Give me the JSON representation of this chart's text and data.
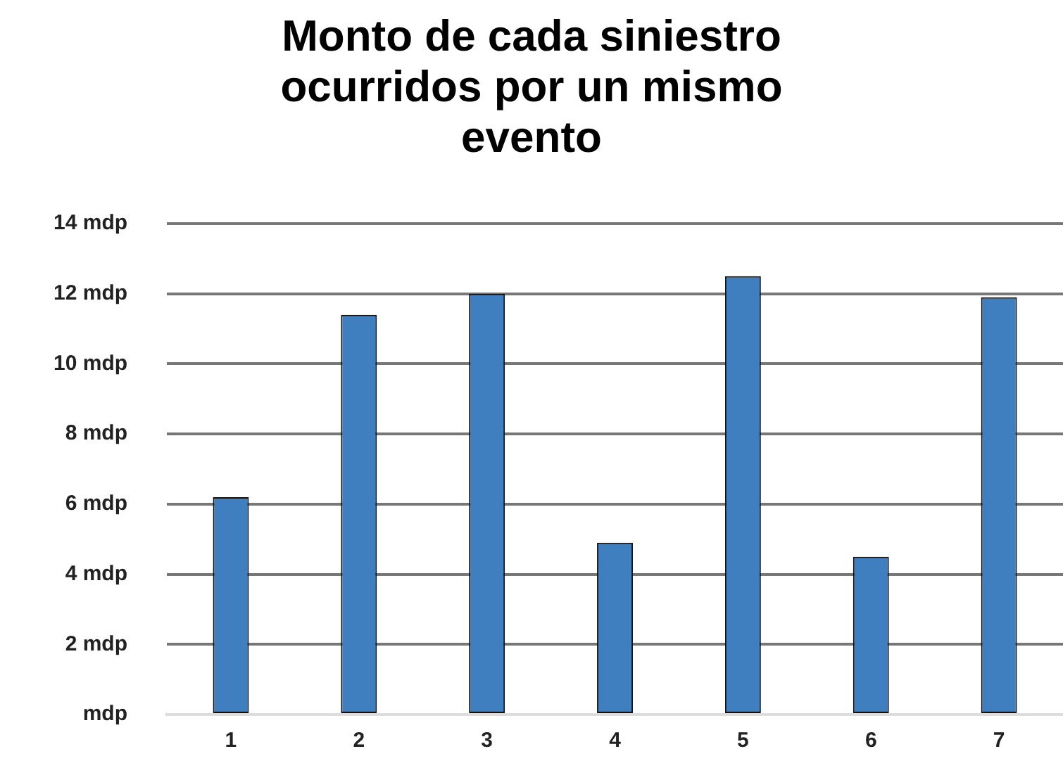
{
  "chart_data": {
    "type": "bar",
    "title": "Monto de cada siniestro ocurridos por un mismo evento",
    "categories": [
      "1",
      "2",
      "3",
      "4",
      "5",
      "6",
      "7"
    ],
    "values": [
      6.2,
      11.4,
      12.0,
      4.9,
      12.5,
      4.5,
      11.9
    ],
    "color": "#3f7fc0",
    "ylim": [
      0,
      14
    ],
    "yticks": [
      {
        "value": 0,
        "label": "mdp"
      },
      {
        "value": 2,
        "label": "2 mdp"
      },
      {
        "value": 4,
        "label": "4 mdp"
      },
      {
        "value": 6,
        "label": "6 mdp"
      },
      {
        "value": 8,
        "label": "8 mdp"
      },
      {
        "value": 10,
        "label": "10 mdp"
      },
      {
        "value": 12,
        "label": "12 mdp"
      },
      {
        "value": 14,
        "label": "14 mdp"
      }
    ],
    "grid": "y",
    "legend": false
  }
}
